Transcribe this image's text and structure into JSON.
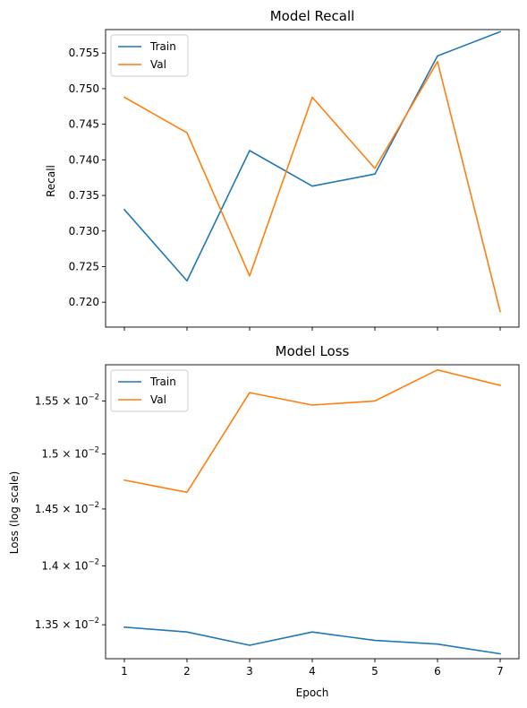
{
  "chart_data": [
    {
      "type": "line",
      "title": "Model Recall",
      "xlabel": "",
      "ylabel": "Recall",
      "x": [
        1,
        2,
        3,
        4,
        5,
        6,
        7
      ],
      "xlim": [
        0.7,
        7.3
      ],
      "ylim": [
        0.7165,
        0.7583
      ],
      "yticks": [
        0.72,
        0.725,
        0.73,
        0.735,
        0.74,
        0.745,
        0.75,
        0.755
      ],
      "ytick_labels": [
        "0.720",
        "0.725",
        "0.730",
        "0.735",
        "0.740",
        "0.745",
        "0.750",
        "0.755"
      ],
      "xtick_labels_shown": false,
      "log_scale": false,
      "grid": false,
      "legend_position": "top-left",
      "series": [
        {
          "name": "Train",
          "color": "#1f77b4",
          "values": [
            0.733,
            0.723,
            0.7413,
            0.7363,
            0.738,
            0.7546,
            0.758
          ]
        },
        {
          "name": "Val",
          "color": "#ff7f0e",
          "values": [
            0.7488,
            0.7438,
            0.7237,
            0.7488,
            0.7388,
            0.7538,
            0.7187
          ]
        }
      ]
    },
    {
      "type": "line",
      "title": "Model Loss",
      "xlabel": "Epoch",
      "ylabel": "Loss (log scale)",
      "x": [
        1,
        2,
        3,
        4,
        5,
        6,
        7
      ],
      "xlim": [
        0.7,
        7.3
      ],
      "ylim": [
        0.01322,
        0.01585
      ],
      "log_scale": true,
      "yticks": [
        0.0135,
        0.014,
        0.0145,
        0.015,
        0.0155
      ],
      "ytick_labels": [
        {
          "mantissa": "1.35",
          "power": "−2"
        },
        {
          "mantissa": "1.4",
          "power": "−2"
        },
        {
          "mantissa": "1.45",
          "power": "−2"
        },
        {
          "mantissa": "1.5",
          "power": "−2"
        },
        {
          "mantissa": "1.55",
          "power": "−2"
        }
      ],
      "xticks": [
        1,
        2,
        3,
        4,
        5,
        6,
        7
      ],
      "xtick_labels": [
        "1",
        "2",
        "3",
        "4",
        "5",
        "6",
        "7"
      ],
      "grid": false,
      "legend_position": "top-left",
      "series": [
        {
          "name": "Train",
          "color": "#1f77b4",
          "values": [
            0.01348,
            0.01344,
            0.01333,
            0.01344,
            0.01337,
            0.01334,
            0.01326
          ]
        },
        {
          "name": "Val",
          "color": "#ff7f0e",
          "values": [
            0.01476,
            0.01465,
            0.01558,
            0.01546,
            0.0155,
            0.0158,
            0.01565
          ]
        }
      ]
    }
  ]
}
